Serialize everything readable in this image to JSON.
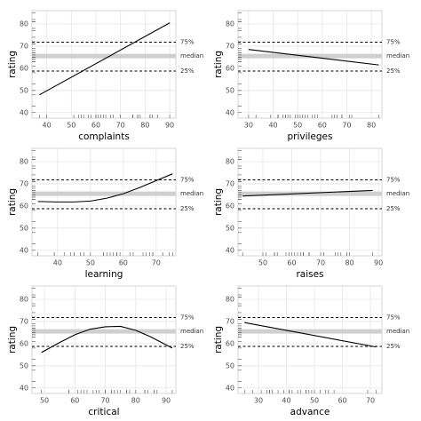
{
  "chart_data": [
    {
      "type": "line",
      "xlabel": "complaints",
      "ylabel": "rating",
      "xlim": [
        34,
        92.5
      ],
      "xticks": [
        40,
        50,
        60,
        70,
        80,
        90
      ],
      "ylim": [
        37.5,
        86
      ],
      "yticks": [
        40,
        50,
        60,
        70,
        80
      ],
      "grid": true,
      "color": "#000000",
      "x": [
        37,
        90
      ],
      "values": [
        48,
        80.5
      ],
      "ref_lines": [
        {
          "value": 71.75,
          "label": "75%",
          "style": "dashed"
        },
        {
          "value": 65.5,
          "label": "median",
          "style": "band"
        },
        {
          "value": 58.75,
          "label": "25%",
          "style": "dashed"
        }
      ],
      "rug_x": [
        51,
        64,
        70,
        63,
        78,
        55,
        67,
        75,
        82,
        61,
        53,
        60,
        62,
        83,
        77,
        90,
        85,
        60,
        70,
        58,
        40,
        61,
        66,
        37,
        54,
        77,
        75,
        57,
        85,
        82
      ],
      "rug_y": [
        43,
        63,
        71,
        61,
        81,
        43,
        58,
        71,
        72,
        67,
        64,
        67,
        69,
        68,
        77,
        81,
        74,
        65,
        65,
        50,
        50,
        64,
        53,
        40,
        63,
        66,
        78,
        48,
        85,
        82
      ]
    },
    {
      "type": "line",
      "xlabel": "privileges",
      "ylabel": "rating",
      "xlim": [
        25.7,
        84.3
      ],
      "xticks": [
        30,
        40,
        50,
        60,
        70,
        80
      ],
      "ylim": [
        37.5,
        86
      ],
      "yticks": [
        40,
        50,
        60,
        70,
        80
      ],
      "grid": true,
      "color": "#000000",
      "x": [
        30,
        83
      ],
      "values": [
        68.5,
        61.5
      ],
      "ref_lines": [
        {
          "value": 71.75,
          "label": "75%",
          "style": "dashed"
        },
        {
          "value": 65.5,
          "label": "median",
          "style": "band"
        },
        {
          "value": 58.75,
          "label": "25%",
          "style": "dashed"
        }
      ],
      "rug_x": [
        30,
        51,
        68,
        45,
        56,
        49,
        42,
        50,
        72,
        45,
        53,
        47,
        57,
        83,
        54,
        50,
        64,
        65,
        46,
        68,
        33,
        52,
        52,
        42,
        42,
        66,
        58,
        44,
        71,
        39
      ],
      "rug_y": [
        43,
        63,
        71,
        61,
        81,
        43,
        58,
        71,
        72,
        67,
        64,
        67,
        69,
        68,
        77,
        81,
        74,
        65,
        65,
        50,
        50,
        64,
        53,
        40,
        63,
        66,
        78,
        48,
        85,
        82
      ]
    },
    {
      "type": "line",
      "xlabel": "learning",
      "ylabel": "rating",
      "xlim": [
        32.2,
        76
      ],
      "xticks": [
        40,
        50,
        60,
        70
      ],
      "ylim": [
        37.5,
        86
      ],
      "yticks": [
        40,
        50,
        60,
        70,
        80
      ],
      "grid": true,
      "color": "#000000",
      "x": [
        34,
        40,
        45,
        50,
        55,
        60,
        65,
        70,
        75
      ],
      "values": [
        62,
        61.8,
        61.8,
        62.2,
        63.5,
        65.5,
        68.3,
        71.4,
        74.5
      ],
      "ref_lines": [
        {
          "value": 71.75,
          "label": "75%",
          "style": "dashed"
        },
        {
          "value": 65.5,
          "label": "median",
          "style": "band"
        },
        {
          "value": 58.75,
          "label": "25%",
          "style": "dashed"
        }
      ],
      "rug_x": [
        39,
        54,
        69,
        47,
        66,
        44,
        56,
        55,
        67,
        47,
        58,
        39,
        42,
        45,
        72,
        72,
        69,
        75,
        57,
        54,
        34,
        62,
        50,
        58,
        48,
        63,
        74,
        45,
        68,
        59
      ],
      "rug_y": [
        43,
        63,
        71,
        61,
        81,
        43,
        58,
        71,
        72,
        67,
        64,
        67,
        69,
        68,
        77,
        81,
        74,
        65,
        65,
        50,
        50,
        64,
        53,
        40,
        63,
        66,
        78,
        48,
        85,
        82
      ]
    },
    {
      "type": "line",
      "xlabel": "raises",
      "ylabel": "rating",
      "xlim": [
        41.4,
        91.2
      ],
      "xticks": [
        50,
        60,
        70,
        80,
        90
      ],
      "ylim": [
        37.5,
        86
      ],
      "yticks": [
        40,
        50,
        60,
        70,
        80
      ],
      "grid": true,
      "color": "#000000",
      "x": [
        43,
        88
      ],
      "values": [
        64.5,
        67
      ],
      "ref_lines": [
        {
          "value": 71.75,
          "label": "75%",
          "style": "dashed"
        },
        {
          "value": 65.5,
          "label": "median",
          "style": "band"
        },
        {
          "value": 58.75,
          "label": "25%",
          "style": "dashed"
        }
      ],
      "rug_x": [
        61,
        63,
        76,
        54,
        71,
        54,
        66,
        70,
        71,
        62,
        58,
        59,
        55,
        59,
        79,
        60,
        79,
        55,
        75,
        64,
        43,
        66,
        63,
        50,
        66,
        88,
        80,
        51,
        77,
        64
      ],
      "rug_y": [
        43,
        63,
        71,
        61,
        81,
        43,
        58,
        71,
        72,
        67,
        64,
        67,
        69,
        68,
        77,
        81,
        74,
        65,
        65,
        50,
        50,
        64,
        53,
        40,
        63,
        66,
        78,
        48,
        85,
        82
      ]
    },
    {
      "type": "line",
      "xlabel": "critical",
      "ylabel": "rating",
      "xlim": [
        45.9,
        93.2
      ],
      "xticks": [
        50,
        60,
        70,
        80,
        90
      ],
      "ylim": [
        37.5,
        86
      ],
      "yticks": [
        40,
        50,
        60,
        70,
        80
      ],
      "grid": true,
      "color": "#000000",
      "x": [
        49,
        55,
        60,
        65,
        70,
        75,
        80,
        85,
        92
      ],
      "values": [
        56,
        60.5,
        64,
        66.5,
        67.6,
        67.8,
        66,
        63,
        58
      ],
      "ref_lines": [
        {
          "value": 71.75,
          "label": "75%",
          "style": "dashed"
        },
        {
          "value": 65.5,
          "label": "median",
          "style": "band"
        },
        {
          "value": 58.75,
          "label": "25%",
          "style": "dashed"
        }
      ],
      "rug_x": [
        92,
        73,
        86,
        84,
        83,
        49,
        68,
        66,
        83,
        80,
        67,
        87,
        80,
        75,
        78,
        58,
        74,
        64,
        86,
        72,
        72,
        58,
        61,
        70,
        62,
        73,
        77,
        70,
        63,
        77
      ],
      "rug_y": [
        43,
        63,
        71,
        61,
        81,
        43,
        58,
        71,
        72,
        67,
        64,
        67,
        69,
        68,
        77,
        81,
        74,
        65,
        65,
        50,
        50,
        64,
        53,
        40,
        63,
        66,
        78,
        48,
        85,
        82
      ]
    },
    {
      "type": "line",
      "xlabel": "advance",
      "ylabel": "rating",
      "xlim": [
        22.7,
        74.1
      ],
      "xticks": [
        30,
        40,
        50,
        60,
        70
      ],
      "ylim": [
        37.5,
        86
      ],
      "yticks": [
        40,
        50,
        60,
        70,
        80
      ],
      "grid": true,
      "color": "#000000",
      "x": [
        25,
        72
      ],
      "values": [
        69.5,
        58.5
      ],
      "ref_lines": [
        {
          "value": 71.75,
          "label": "75%",
          "style": "dashed"
        },
        {
          "value": 65.5,
          "label": "median",
          "style": "band"
        },
        {
          "value": 58.75,
          "label": "25%",
          "style": "dashed"
        }
      ],
      "rug_x": [
        45,
        47,
        48,
        35,
        47,
        34,
        35,
        41,
        31,
        41,
        34,
        41,
        25,
        34,
        33,
        41,
        42,
        54,
        28,
        55,
        39,
        52,
        44,
        49,
        72,
        50,
        57,
        37,
        69,
        55
      ],
      "rug_y": [
        43,
        63,
        71,
        61,
        81,
        43,
        58,
        71,
        72,
        67,
        64,
        67,
        69,
        68,
        77,
        81,
        74,
        65,
        65,
        50,
        50,
        64,
        53,
        40,
        63,
        66,
        78,
        48,
        85,
        82
      ]
    }
  ]
}
